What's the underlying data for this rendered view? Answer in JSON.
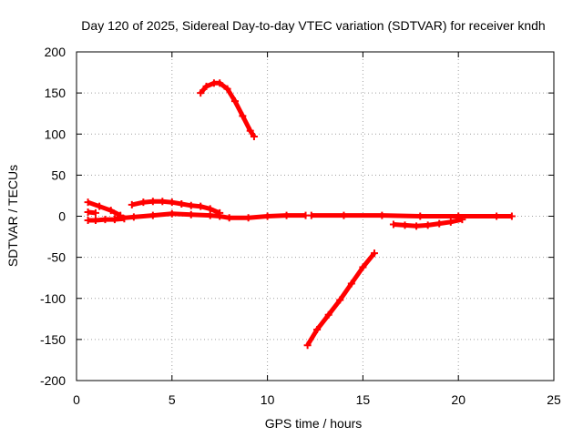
{
  "chart_data": {
    "type": "scatter",
    "title": "Day 120 of 2025, Sidereal Day-to-day VTEC variation (SDTVAR) for receiver kndh",
    "xlabel": "GPS time / hours",
    "ylabel": "SDTVAR / TECUs",
    "xlim": [
      0,
      25
    ],
    "ylim": [
      -200,
      200
    ],
    "x_ticks": [
      "0",
      "5",
      "10",
      "15",
      "20",
      "25"
    ],
    "y_ticks": [
      "-200",
      "-150",
      "-100",
      "-50",
      "0",
      "50",
      "100",
      "150",
      "200"
    ],
    "grid": true,
    "legend": "none",
    "color": "#ff0000",
    "series": [
      {
        "x": [
          6.5,
          6.8,
          7.2,
          7.5,
          7.9,
          8.3,
          8.7,
          9.1,
          9.3
        ],
        "y": [
          150,
          158,
          162,
          162,
          155,
          140,
          122,
          104,
          97
        ]
      },
      {
        "x": [
          12.1,
          12.6,
          13.2,
          13.8,
          14.4,
          15.0,
          15.6
        ],
        "y": [
          -157,
          -138,
          -120,
          -102,
          -82,
          -62,
          -45
        ]
      },
      {
        "x": [
          0.6,
          1.2,
          1.8,
          2.3
        ],
        "y": [
          17,
          12,
          7,
          1
        ]
      },
      {
        "x": [
          0.6,
          1.0,
          1.5,
          2.0,
          2.5
        ],
        "y": [
          -5,
          -5,
          -4,
          -4,
          -3
        ]
      },
      {
        "x": [
          2.0,
          3.0,
          4.0,
          5.0,
          6.0,
          7.0,
          7.5,
          8.0,
          9.0,
          10.0,
          11.0,
          12.0
        ],
        "y": [
          -3,
          -1,
          1,
          3,
          2,
          1,
          0,
          -2,
          -2,
          0,
          1,
          1
        ]
      },
      {
        "x": [
          2.9,
          3.5,
          4.0,
          4.5,
          5.0,
          5.5,
          6.0,
          6.5,
          7.0,
          7.5
        ],
        "y": [
          14,
          17,
          18,
          18,
          17,
          15,
          13,
          12,
          9,
          4
        ]
      },
      {
        "x": [
          0.6,
          1.0
        ],
        "y": [
          5,
          4
        ]
      },
      {
        "x": [
          12.3,
          14.0,
          16.0,
          18.0,
          20.0,
          22.0,
          22.8
        ],
        "y": [
          1,
          1,
          1,
          0,
          0,
          0,
          0
        ]
      },
      {
        "x": [
          16.6,
          17.2,
          17.8,
          18.4,
          19.0,
          19.6,
          20.2
        ],
        "y": [
          -10,
          -11,
          -12,
          -11,
          -9,
          -7,
          -4
        ]
      }
    ]
  }
}
